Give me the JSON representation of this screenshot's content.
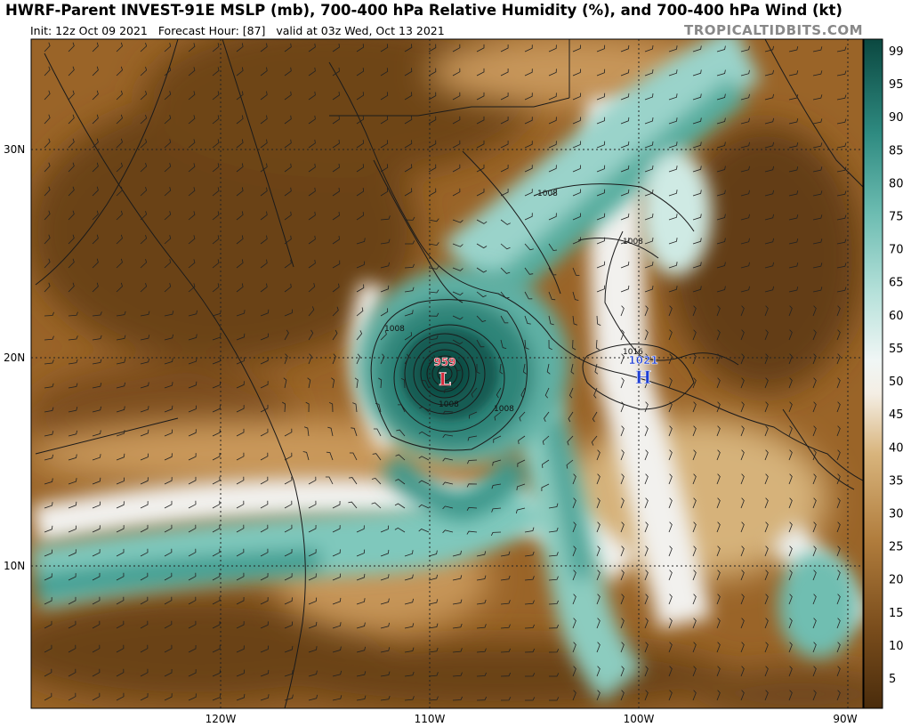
{
  "header": {
    "title": "HWRF-Parent INVEST-91E MSLP (mb), 700-400 hPa Relative Humidity (%), and 700-400 hPa Wind (kt)",
    "init": "Init: 12z Oct 09 2021",
    "forecast_hour": "Forecast Hour: [87]",
    "valid": "valid at 03z Wed, Oct 13 2021",
    "brand": "TROPICALTIDBITS.COM"
  },
  "axes": {
    "lat_labels": [
      "30N",
      "20N",
      "10N"
    ],
    "lon_labels": [
      "120W",
      "110W",
      "100W",
      "90W"
    ]
  },
  "colorbar": {
    "ticks": [
      "99",
      "95",
      "90",
      "85",
      "80",
      "75",
      "70",
      "65",
      "60",
      "55",
      "50",
      "45",
      "40",
      "35",
      "30",
      "25",
      "20",
      "15",
      "10",
      "5"
    ]
  },
  "low": {
    "symbol": "L",
    "pressure": "959",
    "color": "#d6283a"
  },
  "high": {
    "symbol": "H",
    "pressure": "1021",
    "color": "#1f3fd4"
  },
  "isobar_labels": [
    "1008",
    "1008",
    "1008",
    "1008",
    "1008",
    "1016"
  ],
  "colors": {
    "dry_dark": "#5e3a12",
    "dry": "#9a6428",
    "dry_light": "#c79a5a",
    "neutral": "#f2f2f0",
    "moist_light": "#a8d8cf",
    "moist": "#4aa89c",
    "moist_dark": "#11564f"
  }
}
